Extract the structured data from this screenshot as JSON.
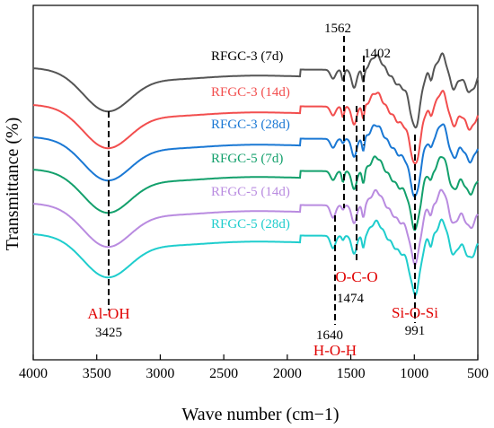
{
  "chart_data": {
    "type": "line",
    "xlabel": "Wave number (cm−1)",
    "ylabel": "Transmittance (%)",
    "xlim": [
      4000,
      500
    ],
    "x_reversed": true,
    "x_ticks": [
      4000,
      3500,
      3000,
      2500,
      2000,
      1500,
      1000,
      500
    ],
    "y_ticks_shown": false,
    "grid": false,
    "series": [
      {
        "name": "RFGC-3 (7d)",
        "color": "#555555"
      },
      {
        "name": "RFGC-3 (14d)",
        "color": "#f24e4e"
      },
      {
        "name": "RFGC-3 (28d)",
        "color": "#1a78d4"
      },
      {
        "name": "RFGC-5 (7d)",
        "color": "#13a06c"
      },
      {
        "name": "RFGC-5 (14d)",
        "color": "#b98be0"
      },
      {
        "name": "RFGC-5 (28d)",
        "color": "#1fcdcd"
      }
    ],
    "annotations": [
      {
        "wavenumber": "3425",
        "group": "Al-OH"
      },
      {
        "wavenumber": "1640",
        "group": "H-O-H"
      },
      {
        "wavenumber": "1562",
        "group": ""
      },
      {
        "wavenumber": "1474",
        "group": "O-C-O"
      },
      {
        "wavenumber": "1402",
        "group": ""
      },
      {
        "wavenumber": "991",
        "group": "Si-O-Si"
      }
    ]
  }
}
